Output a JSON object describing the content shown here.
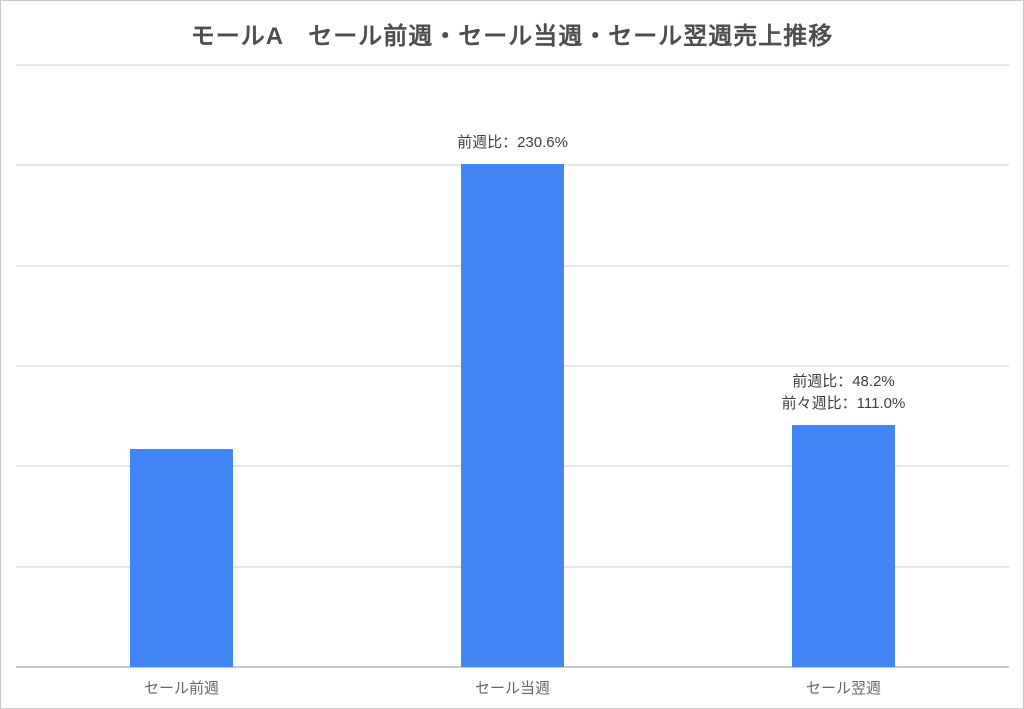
{
  "chart_data": {
    "type": "bar",
    "title": "モールA　セール前週・セール当週・セール翌週売上推移",
    "categories": [
      "セール前週",
      "セール当週",
      "セール翌週"
    ],
    "values": [
      100,
      230.6,
      111.0
    ],
    "ylim": [
      0,
      276
    ],
    "ytick_labels_visible": false,
    "gridline_count": 7,
    "grid": "horizontal",
    "legend_position": "none",
    "annotations": [
      {
        "category": "セール当週",
        "lines": [
          "前週比：230.6%"
        ]
      },
      {
        "category": "セール翌週",
        "lines": [
          "前週比：48.2%",
          "前々週比：111.0%"
        ]
      }
    ]
  },
  "colors": {
    "bar": "#4285f4",
    "title_text": "#4d4d4d",
    "axis_label_text": "#666666",
    "annotation_text": "#3c4043",
    "gridline": "#e6e6e6",
    "baseline": "#c9c9c9",
    "frame_border": "#c8c8c8",
    "background": "#ffffff"
  }
}
